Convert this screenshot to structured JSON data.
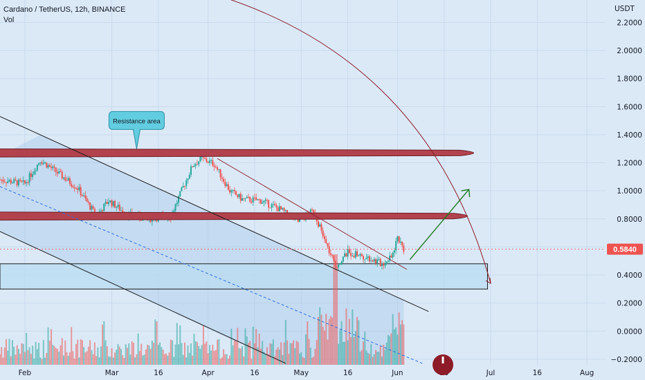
{
  "header": {
    "symbol": "Cardano / TetherUS, 12h, BINANCE",
    "indicator": "Vol"
  },
  "chart_data": {
    "type": "candlestick",
    "y_axis": {
      "unit": "USDT",
      "ticks": [
        2.2,
        2.0,
        1.8,
        1.6,
        1.4,
        1.2,
        1.0,
        0.8,
        0.6,
        0.4,
        0.2,
        0.0,
        -0.2
      ],
      "tick_labels": [
        "2.2000",
        "2.0000",
        "1.8000",
        "1.6000",
        "1.4000",
        "1.2000",
        "1.0000",
        "0.8000",
        "0.6000",
        "0.4000",
        "0.2000",
        "0.0000",
        "−0.2000"
      ],
      "range": [
        -0.24,
        2.36
      ]
    },
    "x_axis": {
      "ticks": [
        {
          "label": "Feb",
          "date": "2022-02-01"
        },
        {
          "label": "Mar",
          "date": "2022-03-01"
        },
        {
          "label": "16",
          "date": "2022-03-16"
        },
        {
          "label": "Apr",
          "date": "2022-04-01"
        },
        {
          "label": "16",
          "date": "2022-04-16"
        },
        {
          "label": "May",
          "date": "2022-05-01"
        },
        {
          "label": "16",
          "date": "2022-05-16"
        },
        {
          "label": "Jun",
          "date": "2022-06-01"
        },
        {
          "label": "16",
          "date": "2022-06-16"
        },
        {
          "label": "Jul",
          "date": "2022-07-01"
        },
        {
          "label": "16",
          "date": "2022-07-16"
        },
        {
          "label": "Aug",
          "date": "2022-08-01"
        }
      ],
      "range": [
        "2022-01-24",
        "2022-08-07"
      ]
    },
    "price_path": [
      {
        "date": "2022-01-24",
        "price": 1.08
      },
      {
        "date": "2022-02-01",
        "price": 1.05
      },
      {
        "date": "2022-02-06",
        "price": 1.22
      },
      {
        "date": "2022-02-12",
        "price": 1.12
      },
      {
        "date": "2022-02-18",
        "price": 1.02
      },
      {
        "date": "2022-02-24",
        "price": 0.82
      },
      {
        "date": "2022-02-28",
        "price": 0.93
      },
      {
        "date": "2022-03-06",
        "price": 0.83
      },
      {
        "date": "2022-03-12",
        "price": 0.8
      },
      {
        "date": "2022-03-20",
        "price": 0.82
      },
      {
        "date": "2022-03-27",
        "price": 1.18
      },
      {
        "date": "2022-03-30",
        "price": 1.23
      },
      {
        "date": "2022-04-03",
        "price": 1.19
      },
      {
        "date": "2022-04-08",
        "price": 1.0
      },
      {
        "date": "2022-04-12",
        "price": 0.94
      },
      {
        "date": "2022-04-18",
        "price": 0.93
      },
      {
        "date": "2022-04-24",
        "price": 0.87
      },
      {
        "date": "2022-04-30",
        "price": 0.78
      },
      {
        "date": "2022-05-05",
        "price": 0.86
      },
      {
        "date": "2022-05-09",
        "price": 0.62
      },
      {
        "date": "2022-05-12",
        "price": 0.46
      },
      {
        "date": "2022-05-16",
        "price": 0.56
      },
      {
        "date": "2022-05-22",
        "price": 0.53
      },
      {
        "date": "2022-05-27",
        "price": 0.48
      },
      {
        "date": "2022-05-30",
        "price": 0.52
      },
      {
        "date": "2022-06-01",
        "price": 0.67
      },
      {
        "date": "2022-06-03",
        "price": 0.584
      }
    ],
    "last_price": {
      "value": 0.584,
      "label": "0.5840"
    },
    "annotations": {
      "resistance_callout": "Resistance area",
      "resistance_band_upper": {
        "start": "2022-01-24",
        "end": "2022-06-30",
        "price": 1.27
      },
      "resistance_band_lower": {
        "start": "2022-01-24",
        "end": "2022-06-28",
        "price": 0.82
      },
      "support_box": {
        "start": "2022-01-24",
        "end": "2022-06-30",
        "top": 0.48,
        "bottom": 0.3
      },
      "up_arrow": {
        "from": {
          "date": "2022-06-05",
          "price": 0.51
        },
        "to": {
          "date": "2022-06-24",
          "price": 1.01
        }
      },
      "down_trend_line": {
        "from": {
          "date": "2022-04-04",
          "price": 1.23
        },
        "to": {
          "date": "2022-06-04",
          "price": 0.44
        }
      },
      "parabolic_curve": {
        "from": {
          "date": "2022-03-31",
          "price": 2.42
        },
        "to": {
          "date": "2022-07-01",
          "price": 0.34
        }
      },
      "channel_upper": {
        "from": {
          "date": "2022-01-24",
          "price": 1.53
        },
        "to": {
          "date": "2022-06-11",
          "price": 0.14
        }
      },
      "channel_lower": {
        "from": {
          "date": "2022-01-24",
          "price": 0.71
        },
        "to": {
          "date": "2022-04-26",
          "price": -0.23
        }
      },
      "dashed_line": {
        "from": {
          "date": "2022-01-24",
          "price": 1.03
        },
        "to": {
          "date": "2022-06-09",
          "price": -0.23
        }
      }
    },
    "volume": {
      "highest_bar_date": "2022-05-12"
    }
  },
  "colors": {
    "background": "#dbe9f7",
    "up": "#26a69a",
    "down": "#ef5350",
    "band": "#b2434e",
    "arrow": "#1b7a1b",
    "channel_fill": "#9fc3e6",
    "callout": "#62cde0"
  }
}
